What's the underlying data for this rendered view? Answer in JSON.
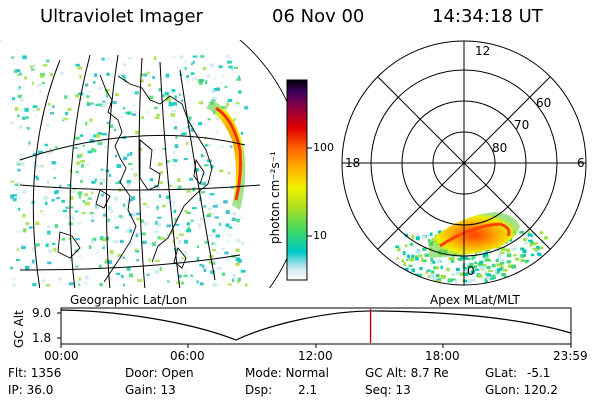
{
  "header": {
    "title": "Ultraviolet Imager",
    "date": "06 Nov 00",
    "time": "14:34:18 UT"
  },
  "colorbar": {
    "label": "photon cm⁻²s⁻¹",
    "scale": "log",
    "tick_100": "100",
    "tick_10": "10"
  },
  "polar": {
    "mlt_12": "12",
    "mlt_18": "18",
    "mlt_6": "6",
    "mlt_0": "0",
    "lat_60": "60",
    "lat_70": "70",
    "lat_80": "80"
  },
  "timeline": {
    "left_label": "Geographic Lat/Lon",
    "right_label": "Apex MLat/MLT",
    "axis_label": "GC Alt",
    "ytick_top": "9.0",
    "ytick_bottom": "1.8",
    "xticks": [
      "00:00",
      "06:00",
      "12:00",
      "18:00",
      "23:59"
    ],
    "current_time_fraction": 0.607
  },
  "info": {
    "flt": "Flt: 1356",
    "ip": "IP: 36.0",
    "door": "Door: Open",
    "gain": "Gain: 13",
    "mode": "Mode: Normal",
    "dsp_label": "Dsp:",
    "dsp_value": "2.1",
    "gcalt": "GC Alt: 8.7 Re",
    "seq": "Seq: 13",
    "glat_label": "GLat:",
    "glat_value": "-5.1",
    "glon": "GLon: 120.2"
  },
  "colors": {
    "timeline_marker": "#cc0000",
    "auroral_core": "#ff4000"
  }
}
